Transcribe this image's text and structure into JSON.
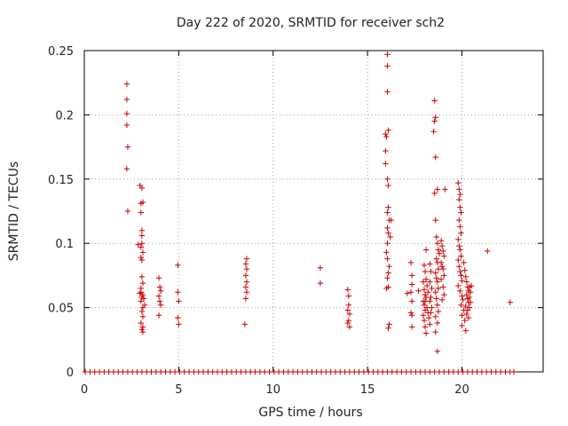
{
  "chart_data": {
    "type": "scatter",
    "title": "Day 222 of 2020, SRMTID for receiver sch2",
    "xlabel": "GPS time / hours",
    "ylabel": "SRMTID / TECUs",
    "xlim": [
      0,
      24.3
    ],
    "ylim": [
      0,
      0.25
    ],
    "xticks": [
      0,
      5,
      10,
      15,
      20
    ],
    "yticks": [
      0,
      0.05,
      0.1,
      0.15,
      0.2,
      0.25
    ],
    "xtick_labels": [
      "0",
      "5",
      "10",
      "15",
      "20"
    ],
    "ytick_labels": [
      "0",
      "0.05",
      "0.1",
      "0.15",
      "0.2",
      "0.25"
    ],
    "grid": true,
    "marker": "+",
    "color": "#cc0000",
    "series": [
      {
        "name": "SRMTID",
        "points": [
          [
            2.25,
            0.224
          ],
          [
            2.25,
            0.212
          ],
          [
            2.25,
            0.201
          ],
          [
            2.25,
            0.192
          ],
          [
            2.3,
            0.175
          ],
          [
            2.25,
            0.158
          ],
          [
            2.3,
            0.125
          ],
          [
            2.85,
            0.099
          ],
          [
            2.95,
            0.145
          ],
          [
            3.05,
            0.143
          ],
          [
            3.0,
            0.131
          ],
          [
            3.0,
            0.124
          ],
          [
            3.1,
            0.132
          ],
          [
            3.05,
            0.11
          ],
          [
            3.05,
            0.106
          ],
          [
            3.05,
            0.1
          ],
          [
            3.0,
            0.097
          ],
          [
            3.1,
            0.093
          ],
          [
            3.0,
            0.089
          ],
          [
            3.05,
            0.087
          ],
          [
            3.05,
            0.074
          ],
          [
            3.1,
            0.069
          ],
          [
            3.0,
            0.065
          ],
          [
            3.0,
            0.062
          ],
          [
            3.1,
            0.06
          ],
          [
            3.05,
            0.058
          ],
          [
            3.0,
            0.055
          ],
          [
            3.1,
            0.05
          ],
          [
            3.05,
            0.047
          ],
          [
            3.1,
            0.043
          ],
          [
            3.0,
            0.038
          ],
          [
            3.1,
            0.035
          ],
          [
            3.05,
            0.033
          ],
          [
            3.1,
            0.031
          ],
          [
            2.95,
            0.061
          ],
          [
            3.15,
            0.057
          ],
          [
            3.2,
            0.052
          ],
          [
            3.95,
            0.073
          ],
          [
            4.0,
            0.066
          ],
          [
            4.05,
            0.063
          ],
          [
            3.95,
            0.059
          ],
          [
            4.0,
            0.055
          ],
          [
            4.05,
            0.052
          ],
          [
            3.95,
            0.044
          ],
          [
            4.95,
            0.083
          ],
          [
            4.95,
            0.062
          ],
          [
            5.0,
            0.055
          ],
          [
            4.95,
            0.042
          ],
          [
            5.0,
            0.037
          ],
          [
            8.6,
            0.088
          ],
          [
            8.55,
            0.084
          ],
          [
            8.6,
            0.08
          ],
          [
            8.55,
            0.075
          ],
          [
            8.6,
            0.07
          ],
          [
            8.55,
            0.066
          ],
          [
            8.6,
            0.062
          ],
          [
            8.55,
            0.057
          ],
          [
            8.5,
            0.037
          ],
          [
            12.5,
            0.081
          ],
          [
            12.5,
            0.069
          ],
          [
            13.95,
            0.064
          ],
          [
            14.0,
            0.059
          ],
          [
            14.0,
            0.052
          ],
          [
            13.95,
            0.048
          ],
          [
            14.05,
            0.045
          ],
          [
            14.0,
            0.04
          ],
          [
            13.95,
            0.038
          ],
          [
            14.05,
            0.035
          ],
          [
            16.05,
            0.247
          ],
          [
            16.05,
            0.238
          ],
          [
            16.05,
            0.218
          ],
          [
            16.1,
            0.188
          ],
          [
            15.95,
            0.185
          ],
          [
            16.0,
            0.183
          ],
          [
            15.95,
            0.172
          ],
          [
            15.95,
            0.162
          ],
          [
            16.05,
            0.15
          ],
          [
            16.1,
            0.145
          ],
          [
            16.1,
            0.128
          ],
          [
            16.05,
            0.124
          ],
          [
            16.15,
            0.118
          ],
          [
            16.05,
            0.112
          ],
          [
            16.1,
            0.108
          ],
          [
            16.2,
            0.105
          ],
          [
            16.25,
            0.118
          ],
          [
            16.05,
            0.1
          ],
          [
            16.0,
            0.093
          ],
          [
            16.05,
            0.088
          ],
          [
            16.15,
            0.082
          ],
          [
            16.1,
            0.077
          ],
          [
            16.05,
            0.073
          ],
          [
            16.1,
            0.066
          ],
          [
            16.0,
            0.065
          ],
          [
            16.15,
            0.037
          ],
          [
            16.1,
            0.034
          ],
          [
            17.1,
            0.061
          ],
          [
            17.3,
            0.085
          ],
          [
            17.35,
            0.075
          ],
          [
            17.35,
            0.068
          ],
          [
            17.3,
            0.062
          ],
          [
            17.35,
            0.055
          ],
          [
            17.3,
            0.046
          ],
          [
            17.35,
            0.044
          ],
          [
            17.35,
            0.035
          ],
          [
            17.7,
            0.063
          ],
          [
            17.95,
            0.07
          ],
          [
            18.0,
            0.064
          ],
          [
            18.05,
            0.06
          ],
          [
            17.95,
            0.055
          ],
          [
            18.0,
            0.052
          ],
          [
            18.05,
            0.048
          ],
          [
            17.95,
            0.044
          ],
          [
            18.0,
            0.04
          ],
          [
            18.05,
            0.035
          ],
          [
            18.1,
            0.03
          ],
          [
            18.0,
            0.083
          ],
          [
            18.05,
            0.078
          ],
          [
            18.1,
            0.072
          ],
          [
            18.15,
            0.067
          ],
          [
            18.2,
            0.062
          ],
          [
            18.1,
            0.058
          ],
          [
            18.05,
            0.055
          ],
          [
            18.15,
            0.05
          ],
          [
            18.2,
            0.046
          ],
          [
            18.25,
            0.042
          ],
          [
            18.1,
            0.095
          ],
          [
            18.3,
            0.084
          ],
          [
            18.35,
            0.078
          ],
          [
            18.3,
            0.07
          ],
          [
            18.4,
            0.065
          ],
          [
            18.35,
            0.058
          ],
          [
            18.3,
            0.055
          ],
          [
            18.4,
            0.05
          ],
          [
            18.35,
            0.046
          ],
          [
            18.3,
            0.037
          ],
          [
            18.55,
            0.211
          ],
          [
            18.6,
            0.198
          ],
          [
            18.55,
            0.195
          ],
          [
            18.5,
            0.187
          ],
          [
            18.6,
            0.167
          ],
          [
            18.55,
            0.139
          ],
          [
            18.7,
            0.142
          ],
          [
            18.6,
            0.118
          ],
          [
            18.65,
            0.105
          ],
          [
            18.7,
            0.1
          ],
          [
            18.75,
            0.095
          ],
          [
            18.8,
            0.092
          ],
          [
            18.65,
            0.088
          ],
          [
            18.7,
            0.085
          ],
          [
            18.75,
            0.08
          ],
          [
            18.6,
            0.077
          ],
          [
            18.65,
            0.073
          ],
          [
            18.7,
            0.07
          ],
          [
            18.75,
            0.065
          ],
          [
            18.6,
            0.062
          ],
          [
            18.65,
            0.057
          ],
          [
            18.7,
            0.052
          ],
          [
            18.75,
            0.047
          ],
          [
            18.6,
            0.043
          ],
          [
            18.7,
            0.038
          ],
          [
            18.6,
            0.031
          ],
          [
            18.7,
            0.016
          ],
          [
            18.9,
            0.102
          ],
          [
            18.95,
            0.098
          ],
          [
            19.0,
            0.094
          ],
          [
            19.05,
            0.09
          ],
          [
            18.9,
            0.085
          ],
          [
            18.95,
            0.082
          ],
          [
            19.0,
            0.08
          ],
          [
            19.05,
            0.075
          ],
          [
            18.9,
            0.072
          ],
          [
            19.0,
            0.066
          ],
          [
            19.05,
            0.06
          ],
          [
            18.95,
            0.056
          ],
          [
            19.1,
            0.142
          ],
          [
            19.8,
            0.147
          ],
          [
            19.85,
            0.142
          ],
          [
            19.9,
            0.138
          ],
          [
            19.85,
            0.134
          ],
          [
            19.9,
            0.128
          ],
          [
            19.95,
            0.124
          ],
          [
            19.85,
            0.118
          ],
          [
            19.9,
            0.113
          ],
          [
            19.95,
            0.108
          ],
          [
            19.8,
            0.103
          ],
          [
            19.85,
            0.098
          ],
          [
            19.9,
            0.095
          ],
          [
            19.95,
            0.09
          ],
          [
            19.8,
            0.087
          ],
          [
            19.85,
            0.082
          ],
          [
            19.9,
            0.078
          ],
          [
            19.95,
            0.075
          ],
          [
            20.0,
            0.071
          ],
          [
            19.8,
            0.067
          ],
          [
            19.9,
            0.063
          ],
          [
            20.0,
            0.059
          ],
          [
            20.05,
            0.056
          ],
          [
            19.95,
            0.052
          ],
          [
            20.1,
            0.048
          ],
          [
            20.0,
            0.044
          ],
          [
            20.15,
            0.04
          ],
          [
            20.0,
            0.036
          ],
          [
            20.2,
            0.032
          ],
          [
            20.1,
            0.085
          ],
          [
            20.15,
            0.079
          ],
          [
            20.2,
            0.074
          ],
          [
            20.25,
            0.07
          ],
          [
            20.3,
            0.066
          ],
          [
            20.35,
            0.063
          ],
          [
            20.25,
            0.06
          ],
          [
            20.3,
            0.057
          ],
          [
            20.35,
            0.054
          ],
          [
            20.2,
            0.051
          ],
          [
            20.3,
            0.048
          ],
          [
            20.25,
            0.045
          ],
          [
            20.35,
            0.042
          ],
          [
            20.4,
            0.066
          ],
          [
            20.45,
            0.062
          ],
          [
            20.4,
            0.058
          ],
          [
            20.45,
            0.054
          ],
          [
            20.4,
            0.05
          ],
          [
            20.5,
            0.067
          ],
          [
            21.35,
            0.094
          ],
          [
            22.55,
            0.054
          ],
          [
            0.05,
            0
          ],
          [
            0.3,
            0
          ],
          [
            0.55,
            0
          ],
          [
            0.8,
            0
          ],
          [
            1.05,
            0
          ],
          [
            1.3,
            0
          ],
          [
            1.55,
            0
          ],
          [
            1.8,
            0
          ],
          [
            2.05,
            0
          ],
          [
            2.3,
            0
          ],
          [
            2.55,
            0
          ],
          [
            2.8,
            0
          ],
          [
            3.05,
            0
          ],
          [
            3.3,
            0
          ],
          [
            3.55,
            0
          ],
          [
            3.8,
            0
          ],
          [
            4.05,
            0
          ],
          [
            4.3,
            0
          ],
          [
            4.55,
            0
          ],
          [
            4.8,
            0
          ],
          [
            5.05,
            0
          ],
          [
            5.3,
            0
          ],
          [
            5.55,
            0
          ],
          [
            5.8,
            0
          ],
          [
            6.05,
            0
          ],
          [
            6.3,
            0
          ],
          [
            6.55,
            0
          ],
          [
            6.8,
            0
          ],
          [
            7.05,
            0
          ],
          [
            7.3,
            0
          ],
          [
            7.55,
            0
          ],
          [
            7.8,
            0
          ],
          [
            8.05,
            0
          ],
          [
            8.3,
            0
          ],
          [
            8.55,
            0
          ],
          [
            8.8,
            0
          ],
          [
            9.05,
            0
          ],
          [
            9.3,
            0
          ],
          [
            9.55,
            0
          ],
          [
            9.8,
            0
          ],
          [
            10.05,
            0
          ],
          [
            10.3,
            0
          ],
          [
            10.55,
            0
          ],
          [
            10.8,
            0
          ],
          [
            11.05,
            0
          ],
          [
            11.3,
            0
          ],
          [
            11.55,
            0
          ],
          [
            11.8,
            0
          ],
          [
            12.05,
            0
          ],
          [
            12.3,
            0
          ],
          [
            12.55,
            0
          ],
          [
            12.8,
            0
          ],
          [
            13.05,
            0
          ],
          [
            13.3,
            0
          ],
          [
            13.55,
            0
          ],
          [
            13.8,
            0
          ],
          [
            14.05,
            0
          ],
          [
            14.3,
            0
          ],
          [
            14.55,
            0
          ],
          [
            14.8,
            0
          ],
          [
            15.05,
            0
          ],
          [
            15.3,
            0
          ],
          [
            15.55,
            0
          ],
          [
            15.8,
            0
          ],
          [
            16.05,
            0
          ],
          [
            16.3,
            0
          ],
          [
            16.55,
            0
          ],
          [
            16.8,
            0
          ],
          [
            17.05,
            0
          ],
          [
            17.3,
            0
          ],
          [
            17.55,
            0
          ],
          [
            17.8,
            0
          ],
          [
            18.05,
            0
          ],
          [
            18.3,
            0
          ],
          [
            18.55,
            0
          ],
          [
            18.8,
            0
          ],
          [
            19.05,
            0
          ],
          [
            19.3,
            0
          ],
          [
            19.55,
            0
          ],
          [
            19.8,
            0
          ],
          [
            20.05,
            0
          ],
          [
            20.3,
            0
          ],
          [
            20.55,
            0
          ],
          [
            20.8,
            0
          ],
          [
            21.05,
            0
          ],
          [
            21.3,
            0
          ],
          [
            21.55,
            0
          ],
          [
            21.8,
            0
          ],
          [
            22.05,
            0
          ],
          [
            22.3,
            0
          ],
          [
            22.55,
            0
          ],
          [
            22.75,
            0
          ]
        ]
      }
    ]
  }
}
